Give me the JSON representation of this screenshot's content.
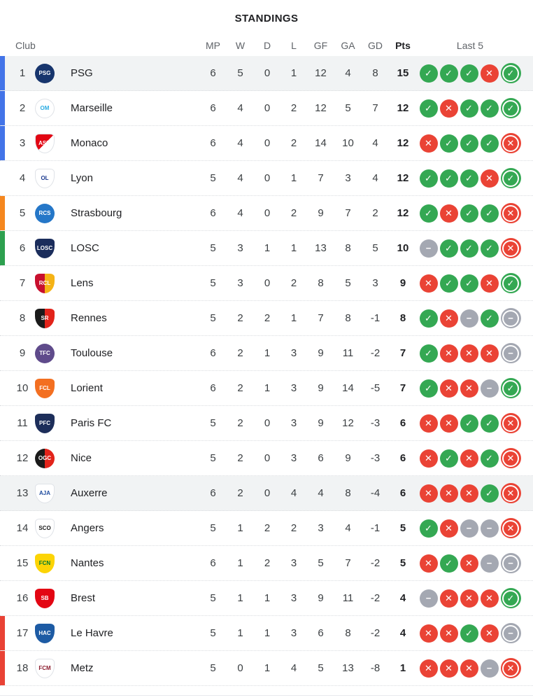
{
  "title": "STANDINGS",
  "columns": {
    "club": "Club",
    "mp": "MP",
    "w": "W",
    "d": "D",
    "l": "L",
    "gf": "GF",
    "ga": "GA",
    "gd": "GD",
    "pts": "Pts",
    "last5": "Last 5"
  },
  "colors": {
    "win": "#34a853",
    "loss": "#ea4335",
    "draw": "#a4a8b2",
    "ucl": "#4374e8",
    "uel": "#f5871f",
    "uecl": "#2da04f",
    "relegation": "#e94235",
    "row_highlight": "#f1f3f4"
  },
  "result_glyphs": {
    "W": "✓",
    "L": "✕",
    "D": "−"
  },
  "result_icon_names": {
    "W": "win-icon",
    "L": "loss-icon",
    "D": "draw-icon"
  },
  "standings": {
    "rows": [
      {
        "rank": 1,
        "club": "PSG",
        "mp": 6,
        "w": 5,
        "d": 0,
        "l": 1,
        "gf": 12,
        "ga": 4,
        "gd": "8",
        "pts": 15,
        "qualification": "ucl",
        "highlighted": true,
        "last5": [
          "W",
          "W",
          "W",
          "L",
          "W"
        ],
        "logo": {
          "shape": "circle",
          "bg": "#17356d",
          "fg": "#ffffff",
          "code": "PSG",
          "bordered": false
        }
      },
      {
        "rank": 2,
        "club": "Marseille",
        "mp": 6,
        "w": 4,
        "d": 0,
        "l": 2,
        "gf": 12,
        "ga": 5,
        "gd": "7",
        "pts": 12,
        "qualification": "ucl",
        "highlighted": false,
        "last5": [
          "W",
          "L",
          "W",
          "W",
          "W"
        ],
        "logo": {
          "shape": "circle",
          "bg": "#ffffff",
          "fg": "#2cace2",
          "code": "OM",
          "bordered": true
        }
      },
      {
        "rank": 3,
        "club": "Monaco",
        "mp": 6,
        "w": 4,
        "d": 0,
        "l": 2,
        "gf": 14,
        "ga": 10,
        "gd": "4",
        "pts": 12,
        "qualification": "ucl",
        "highlighted": false,
        "last5": [
          "L",
          "W",
          "W",
          "W",
          "L"
        ],
        "logo": {
          "shape": "shield",
          "bg": "linear-gradient(135deg,#e20613 50%,#ffffff 50%)",
          "fg": "#ffffff",
          "code": "ASM",
          "bordered": true
        }
      },
      {
        "rank": 4,
        "club": "Lyon",
        "mp": 5,
        "w": 4,
        "d": 0,
        "l": 1,
        "gf": 7,
        "ga": 3,
        "gd": "4",
        "pts": 12,
        "qualification": null,
        "highlighted": false,
        "last5": [
          "W",
          "W",
          "W",
          "L",
          "W"
        ],
        "logo": {
          "shape": "shield",
          "bg": "#ffffff",
          "fg": "#1b3a8f",
          "code": "OL",
          "bordered": true
        }
      },
      {
        "rank": 5,
        "club": "Strasbourg",
        "mp": 6,
        "w": 4,
        "d": 0,
        "l": 2,
        "gf": 9,
        "ga": 7,
        "gd": "2",
        "pts": 12,
        "qualification": "uel",
        "highlighted": false,
        "last5": [
          "W",
          "L",
          "W",
          "W",
          "L"
        ],
        "logo": {
          "shape": "circle",
          "bg": "#2577c8",
          "fg": "#ffffff",
          "code": "RCS",
          "bordered": false
        }
      },
      {
        "rank": 6,
        "club": "LOSC",
        "mp": 5,
        "w": 3,
        "d": 1,
        "l": 1,
        "gf": 13,
        "ga": 8,
        "gd": "5",
        "pts": 10,
        "qualification": "uecl",
        "highlighted": false,
        "last5": [
          "D",
          "W",
          "W",
          "W",
          "L"
        ],
        "logo": {
          "shape": "shield",
          "bg": "#1b2d5c",
          "fg": "#ffffff",
          "code": "LOSC",
          "bordered": false
        }
      },
      {
        "rank": 7,
        "club": "Lens",
        "mp": 5,
        "w": 3,
        "d": 0,
        "l": 2,
        "gf": 8,
        "ga": 5,
        "gd": "3",
        "pts": 9,
        "qualification": null,
        "highlighted": false,
        "last5": [
          "L",
          "W",
          "W",
          "L",
          "W"
        ],
        "logo": {
          "shape": "shield",
          "bg": "linear-gradient(90deg,#c8102e 50%,#f5b316 50%)",
          "fg": "#ffffff",
          "code": "RCL",
          "bordered": false
        }
      },
      {
        "rank": 8,
        "club": "Rennes",
        "mp": 5,
        "w": 2,
        "d": 2,
        "l": 1,
        "gf": 7,
        "ga": 8,
        "gd": "-1",
        "pts": 8,
        "qualification": null,
        "highlighted": false,
        "last5": [
          "W",
          "L",
          "D",
          "W",
          "D"
        ],
        "logo": {
          "shape": "shield",
          "bg": "linear-gradient(90deg,#1a1a1a 50%,#e2231a 50%)",
          "fg": "#ffffff",
          "code": "SR",
          "bordered": false
        }
      },
      {
        "rank": 9,
        "club": "Toulouse",
        "mp": 6,
        "w": 2,
        "d": 1,
        "l": 3,
        "gf": 9,
        "ga": 11,
        "gd": "-2",
        "pts": 7,
        "qualification": null,
        "highlighted": false,
        "last5": [
          "W",
          "L",
          "L",
          "L",
          "D"
        ],
        "logo": {
          "shape": "circle",
          "bg": "#5f4b8b",
          "fg": "#ffffff",
          "code": "TFC",
          "bordered": false
        }
      },
      {
        "rank": 10,
        "club": "Lorient",
        "mp": 6,
        "w": 2,
        "d": 1,
        "l": 3,
        "gf": 9,
        "ga": 14,
        "gd": "-5",
        "pts": 7,
        "qualification": null,
        "highlighted": false,
        "last5": [
          "W",
          "L",
          "L",
          "D",
          "W"
        ],
        "logo": {
          "shape": "shield",
          "bg": "#f36f21",
          "fg": "#ffffff",
          "code": "FCL",
          "bordered": false
        }
      },
      {
        "rank": 11,
        "club": "Paris FC",
        "mp": 5,
        "w": 2,
        "d": 0,
        "l": 3,
        "gf": 9,
        "ga": 12,
        "gd": "-3",
        "pts": 6,
        "qualification": null,
        "highlighted": false,
        "last5": [
          "L",
          "L",
          "W",
          "W",
          "L"
        ],
        "logo": {
          "shape": "shield",
          "bg": "#1d2e5a",
          "fg": "#ffffff",
          "code": "PFC",
          "bordered": false
        }
      },
      {
        "rank": 12,
        "club": "Nice",
        "mp": 5,
        "w": 2,
        "d": 0,
        "l": 3,
        "gf": 6,
        "ga": 9,
        "gd": "-3",
        "pts": 6,
        "qualification": null,
        "highlighted": false,
        "last5": [
          "L",
          "W",
          "L",
          "W",
          "L"
        ],
        "logo": {
          "shape": "circle",
          "bg": "linear-gradient(90deg,#1a1a1a 50%,#e2231a 50%)",
          "fg": "#ffffff",
          "code": "OGC",
          "bordered": false
        }
      },
      {
        "rank": 13,
        "club": "Auxerre",
        "mp": 6,
        "w": 2,
        "d": 0,
        "l": 4,
        "gf": 4,
        "ga": 8,
        "gd": "-4",
        "pts": 6,
        "qualification": null,
        "highlighted": true,
        "last5": [
          "L",
          "L",
          "L",
          "W",
          "L"
        ],
        "logo": {
          "shape": "shield",
          "bg": "#ffffff",
          "fg": "#1e4b9e",
          "code": "AJA",
          "bordered": true
        }
      },
      {
        "rank": 14,
        "club": "Angers",
        "mp": 5,
        "w": 1,
        "d": 2,
        "l": 2,
        "gf": 3,
        "ga": 4,
        "gd": "-1",
        "pts": 5,
        "qualification": null,
        "highlighted": false,
        "last5": [
          "W",
          "L",
          "D",
          "D",
          "L"
        ],
        "logo": {
          "shape": "shield",
          "bg": "#ffffff",
          "fg": "#1a1a1a",
          "code": "SCO",
          "bordered": true
        }
      },
      {
        "rank": 15,
        "club": "Nantes",
        "mp": 6,
        "w": 1,
        "d": 2,
        "l": 3,
        "gf": 5,
        "ga": 7,
        "gd": "-2",
        "pts": 5,
        "qualification": null,
        "highlighted": false,
        "last5": [
          "L",
          "W",
          "L",
          "D",
          "D"
        ],
        "logo": {
          "shape": "shield",
          "bg": "#fcd405",
          "fg": "#007a33",
          "code": "FCN",
          "bordered": false
        }
      },
      {
        "rank": 16,
        "club": "Brest",
        "mp": 5,
        "w": 1,
        "d": 1,
        "l": 3,
        "gf": 9,
        "ga": 11,
        "gd": "-2",
        "pts": 4,
        "qualification": null,
        "highlighted": false,
        "last5": [
          "D",
          "L",
          "L",
          "L",
          "W"
        ],
        "logo": {
          "shape": "shield",
          "bg": "#e30613",
          "fg": "#ffffff",
          "code": "SB",
          "bordered": false
        }
      },
      {
        "rank": 17,
        "club": "Le Havre",
        "mp": 5,
        "w": 1,
        "d": 1,
        "l": 3,
        "gf": 6,
        "ga": 8,
        "gd": "-2",
        "pts": 4,
        "qualification": "relegation",
        "highlighted": false,
        "last5": [
          "L",
          "L",
          "W",
          "L",
          "D"
        ],
        "logo": {
          "shape": "shield",
          "bg": "#1d5ba4",
          "fg": "#ffffff",
          "code": "HAC",
          "bordered": false
        }
      },
      {
        "rank": 18,
        "club": "Metz",
        "mp": 5,
        "w": 0,
        "d": 1,
        "l": 4,
        "gf": 5,
        "ga": 13,
        "gd": "-8",
        "pts": 1,
        "qualification": "relegation",
        "highlighted": false,
        "last5": [
          "L",
          "L",
          "L",
          "D",
          "L"
        ],
        "logo": {
          "shape": "shield",
          "bg": "#ffffff",
          "fg": "#8c1d2f",
          "code": "FCM",
          "bordered": true
        }
      }
    ]
  }
}
